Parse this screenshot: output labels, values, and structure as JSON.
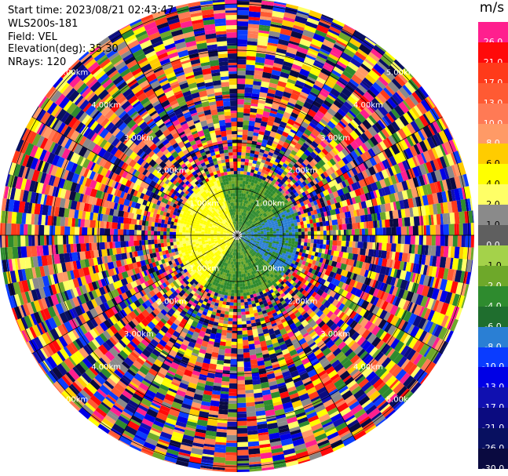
{
  "header": {
    "start_time": "Start time: 2023/08/21 02:43:47",
    "instrument": "WLS200s-181",
    "field": "Field: VEL",
    "elevation": "Elevation(deg): 35.30",
    "nrays": "NRays: 120"
  },
  "range_rings": {
    "labels": [
      "1.00km",
      "2.00km",
      "3.00km",
      "4.00km",
      "5.00km"
    ]
  },
  "colorbar": {
    "unit": "m/s",
    "levels": [
      {
        "label": "26.0",
        "color": "#ff1f8e"
      },
      {
        "label": "21.0",
        "color": "#ff0a0a"
      },
      {
        "label": "17.0",
        "color": "#ff3a1a"
      },
      {
        "label": "13.0",
        "color": "#ff5a33"
      },
      {
        "label": "10.0",
        "color": "#ff7a55"
      },
      {
        "label": "8.0",
        "color": "#ff9a66"
      },
      {
        "label": "6.0",
        "color": "#ffcc00"
      },
      {
        "label": "4.0",
        "color": "#ffff00"
      },
      {
        "label": "2.0",
        "color": "#ffff66"
      },
      {
        "label": "1.0",
        "color": "#8a8a8a"
      },
      {
        "label": "0.0",
        "color": "#5f5f5f"
      },
      {
        "label": "-1.0",
        "color": "#a4d24a"
      },
      {
        "label": "-2.0",
        "color": "#6ea82a"
      },
      {
        "label": "-4.0",
        "color": "#2e8b2e"
      },
      {
        "label": "-6.0",
        "color": "#1f6e2e"
      },
      {
        "label": "-8.0",
        "color": "#2a7fd4"
      },
      {
        "label": "-10.0",
        "color": "#0a3cff"
      },
      {
        "label": "-13.0",
        "color": "#0000e6"
      },
      {
        "label": "-17.0",
        "color": "#1010b0"
      },
      {
        "label": "-21.0",
        "color": "#0b0b80"
      },
      {
        "label": "-26.0",
        "color": "#081060"
      },
      {
        "label": "-30.0",
        "color": "#0a0a40"
      }
    ]
  }
}
